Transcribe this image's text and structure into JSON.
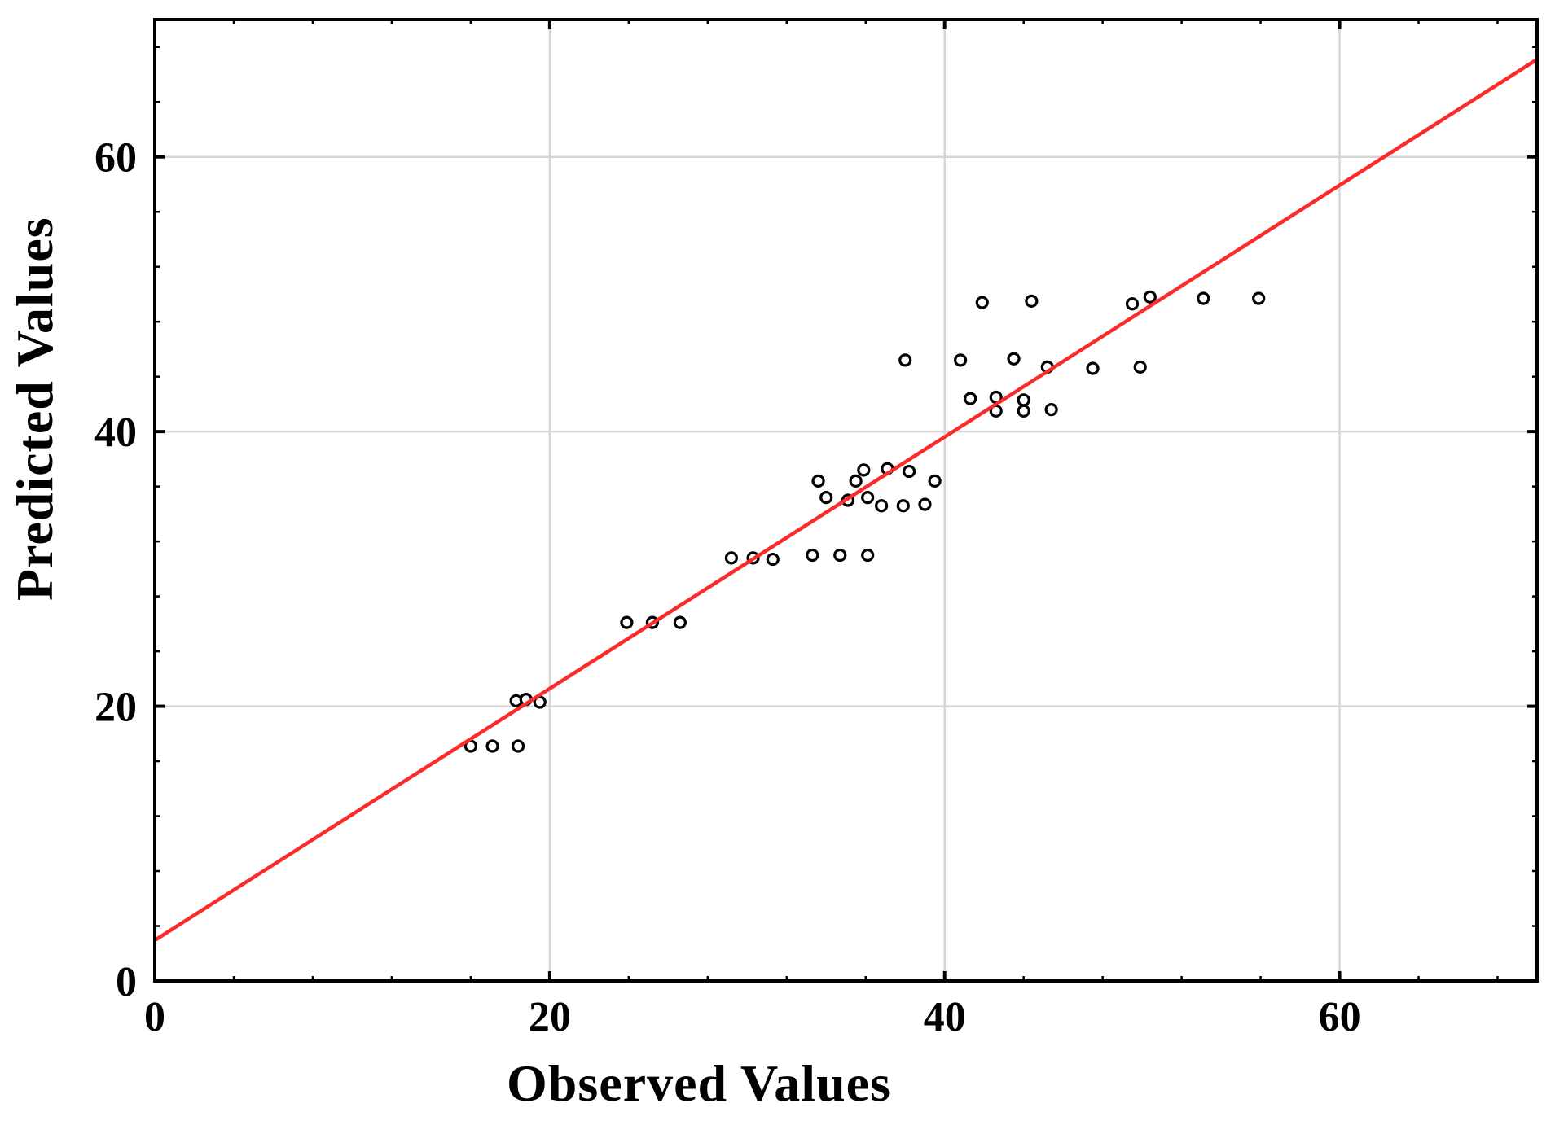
{
  "chart_data": {
    "type": "scatter",
    "title": "",
    "xlabel": "Observed Values",
    "ylabel": "Predicted Values",
    "xlim": [
      0,
      70
    ],
    "ylim": [
      0,
      70
    ],
    "x_major_ticks": [
      0,
      20,
      40,
      60
    ],
    "y_major_ticks": [
      0,
      20,
      40,
      60
    ],
    "minor_tick_step": 4,
    "x_gridlines": [
      20,
      40,
      60
    ],
    "y_gridlines": [
      20,
      40,
      60
    ],
    "grid_on": true,
    "legend": "none",
    "background_color": "#ffffff",
    "grid_color": "#d6d6d6",
    "axis_color": "#000000",
    "tick_label_color": "#000000",
    "marker": {
      "shape": "open-circle",
      "fill": "#ffffff",
      "stroke": "#000000",
      "radius_px": 6.5
    },
    "fit_line": {
      "x": [
        0,
        70
      ],
      "y": [
        2.96,
        67.1
      ],
      "color": "#fb2b2b"
    },
    "points": [
      [
        16.0,
        17.1
      ],
      [
        17.1,
        17.1
      ],
      [
        18.4,
        17.1
      ],
      [
        18.3,
        20.4
      ],
      [
        18.8,
        20.5
      ],
      [
        19.5,
        20.3
      ],
      [
        23.9,
        26.1
      ],
      [
        25.2,
        26.1
      ],
      [
        26.6,
        26.1
      ],
      [
        29.2,
        30.8
      ],
      [
        30.3,
        30.8
      ],
      [
        31.3,
        30.7
      ],
      [
        33.3,
        31.0
      ],
      [
        34.7,
        31.0
      ],
      [
        36.1,
        31.0
      ],
      [
        33.6,
        36.4
      ],
      [
        34.0,
        35.2
      ],
      [
        35.1,
        35.0
      ],
      [
        35.5,
        36.4
      ],
      [
        35.9,
        37.2
      ],
      [
        36.1,
        35.2
      ],
      [
        36.8,
        34.6
      ],
      [
        37.1,
        37.3
      ],
      [
        37.9,
        34.6
      ],
      [
        38.2,
        37.1
      ],
      [
        39.0,
        34.7
      ],
      [
        39.5,
        36.4
      ],
      [
        41.3,
        42.4
      ],
      [
        42.6,
        42.5
      ],
      [
        42.6,
        41.5
      ],
      [
        44.0,
        42.3
      ],
      [
        44.0,
        41.5
      ],
      [
        45.4,
        41.6
      ],
      [
        38.0,
        45.2
      ],
      [
        40.8,
        45.2
      ],
      [
        43.5,
        45.3
      ],
      [
        45.2,
        44.7
      ],
      [
        47.5,
        44.6
      ],
      [
        49.9,
        44.7
      ],
      [
        41.9,
        49.4
      ],
      [
        44.4,
        49.5
      ],
      [
        49.5,
        49.3
      ],
      [
        50.4,
        49.8
      ],
      [
        53.1,
        49.7
      ],
      [
        55.9,
        49.7
      ]
    ]
  }
}
